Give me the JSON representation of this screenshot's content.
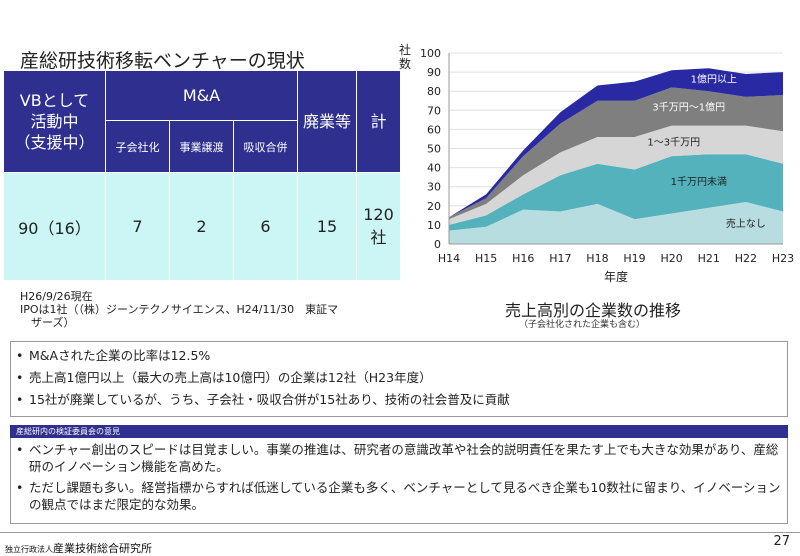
{
  "slide": {
    "title": "産総研技術移転ベンチャーの現状",
    "page_number": "27"
  },
  "table": {
    "header": {
      "vb_support": [
        "VBとして",
        "活動中",
        "（支援中）"
      ],
      "ma": "M&A",
      "ma_sub": [
        "子会社化",
        "事業譲渡",
        "吸収合併"
      ],
      "closed": "廃業等",
      "total": "計"
    },
    "row": {
      "vb_support": "90（16）",
      "subsidiary": "7",
      "transfer": "2",
      "merger": "6",
      "closed": "15",
      "total": "120社"
    }
  },
  "note": {
    "line1": "H26/9/26現在",
    "line2": "IPOは1社（（株）ジーンテクノサイエンス、H24/11/30　東証マ",
    "line3": "　ザーズ）"
  },
  "chart_data": {
    "type": "area",
    "stacked": true,
    "ylabel": "社数",
    "xlabel": "年度",
    "ylim": [
      0,
      100
    ],
    "yticks": [
      0,
      10,
      20,
      30,
      40,
      50,
      60,
      70,
      80,
      90,
      100
    ],
    "categories": [
      "H14",
      "H15",
      "H16",
      "H17",
      "H18",
      "H19",
      "H20",
      "H21",
      "H22",
      "H23"
    ],
    "series": [
      {
        "name": "売上なし",
        "color": "#b8dde0",
        "values": [
          7,
          9,
          18,
          17,
          21,
          13,
          16,
          19,
          22,
          17
        ]
      },
      {
        "name": "1千万円未満",
        "color": "#54b2bd",
        "values": [
          3,
          6,
          8,
          19,
          21,
          26,
          30,
          28,
          25,
          25
        ]
      },
      {
        "name": "1～3千万円",
        "color": "#d6d6d6",
        "values": [
          3,
          6,
          10,
          12,
          14,
          17,
          16,
          15,
          15,
          17
        ]
      },
      {
        "name": "3千万円～1億円",
        "color": "#7f7f7f",
        "values": [
          1,
          3,
          10,
          15,
          19,
          19,
          20,
          18,
          15,
          19
        ]
      },
      {
        "name": "1億円以上",
        "color": "#2929a3",
        "values": [
          0,
          2,
          3,
          6,
          8,
          10,
          9,
          12,
          12,
          12
        ]
      }
    ],
    "title": "売上高別の企業数の推移",
    "subtitle": "（子会社化された企業も含む）"
  },
  "summary": {
    "items": [
      "M&Aされた企業の比率は12.5%",
      "売上高1億円以上（最大の売上高は10億円）の企業は12社（H23年度）",
      "15社が廃業しているが、うち、子会社・吸収合併が15社あり、技術の社会普及に貢献"
    ]
  },
  "review": {
    "header": "産総研内の検証委員会の意見",
    "items": [
      "ベンチャー創出のスピードは目覚ましい。事業の推進は、研究者の意識改革や社会的説明責任を果たす上でも大きな効果があり、産総研のイノベーション機能を高めた。",
      "ただし課題も多い。経営指標からすれば低迷している企業も多く、ベンチャーとして見るべき企業も10数社に留まり、イノベーションの観点ではまだ限定的な効果。"
    ]
  },
  "footer": {
    "org_prefix": "独立行政法人",
    "org_name": "産業技術総合研究所"
  }
}
